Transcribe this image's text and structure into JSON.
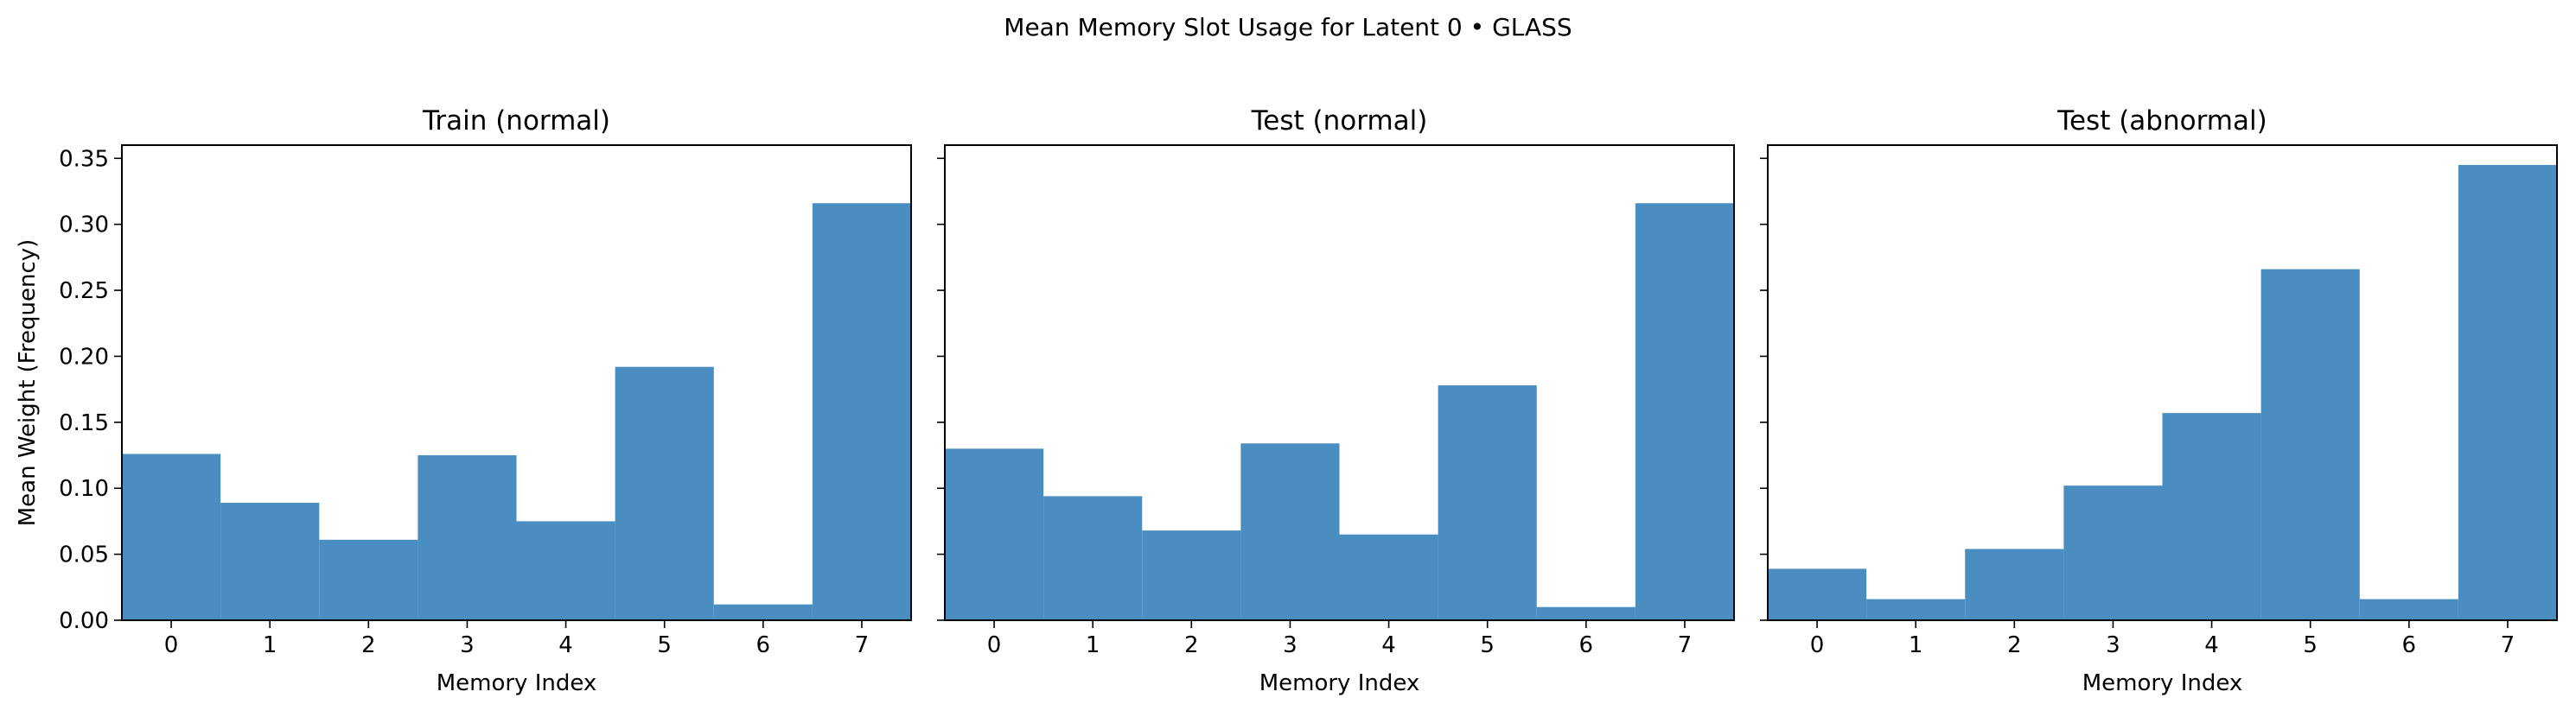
{
  "figure": {
    "suptitle": "Mean Memory Slot Usage for Latent 0 • GLASS",
    "bar_color": "#4a8dc1",
    "axis_color": "#000000",
    "shared_y": true
  },
  "chart_data": [
    {
      "type": "bar",
      "title": "Train (normal)",
      "xlabel": "Memory Index",
      "ylabel": "Mean Weight (Frequency)",
      "categories": [
        "0",
        "1",
        "2",
        "3",
        "4",
        "5",
        "6",
        "7"
      ],
      "values": [
        0.126,
        0.089,
        0.061,
        0.125,
        0.075,
        0.192,
        0.012,
        0.316
      ],
      "ylim": [
        0,
        0.36
      ],
      "yticks": [
        "0.00",
        "0.05",
        "0.10",
        "0.15",
        "0.20",
        "0.25",
        "0.30",
        "0.35"
      ],
      "grid": false,
      "legend": "none"
    },
    {
      "type": "bar",
      "title": "Test (normal)",
      "xlabel": "Memory Index",
      "ylabel": "",
      "categories": [
        "0",
        "1",
        "2",
        "3",
        "4",
        "5",
        "6",
        "7"
      ],
      "values": [
        0.13,
        0.094,
        0.068,
        0.134,
        0.065,
        0.178,
        0.01,
        0.316
      ],
      "ylim": [
        0,
        0.36
      ],
      "yticks": [
        "0.00",
        "0.05",
        "0.10",
        "0.15",
        "0.20",
        "0.25",
        "0.30",
        "0.35"
      ],
      "grid": false,
      "legend": "none"
    },
    {
      "type": "bar",
      "title": "Test (abnormal)",
      "xlabel": "Memory Index",
      "ylabel": "",
      "categories": [
        "0",
        "1",
        "2",
        "3",
        "4",
        "5",
        "6",
        "7"
      ],
      "values": [
        0.039,
        0.016,
        0.054,
        0.102,
        0.157,
        0.266,
        0.016,
        0.345
      ],
      "ylim": [
        0,
        0.36
      ],
      "yticks": [
        "0.00",
        "0.05",
        "0.10",
        "0.15",
        "0.20",
        "0.25",
        "0.30",
        "0.35"
      ],
      "grid": false,
      "legend": "none"
    }
  ]
}
